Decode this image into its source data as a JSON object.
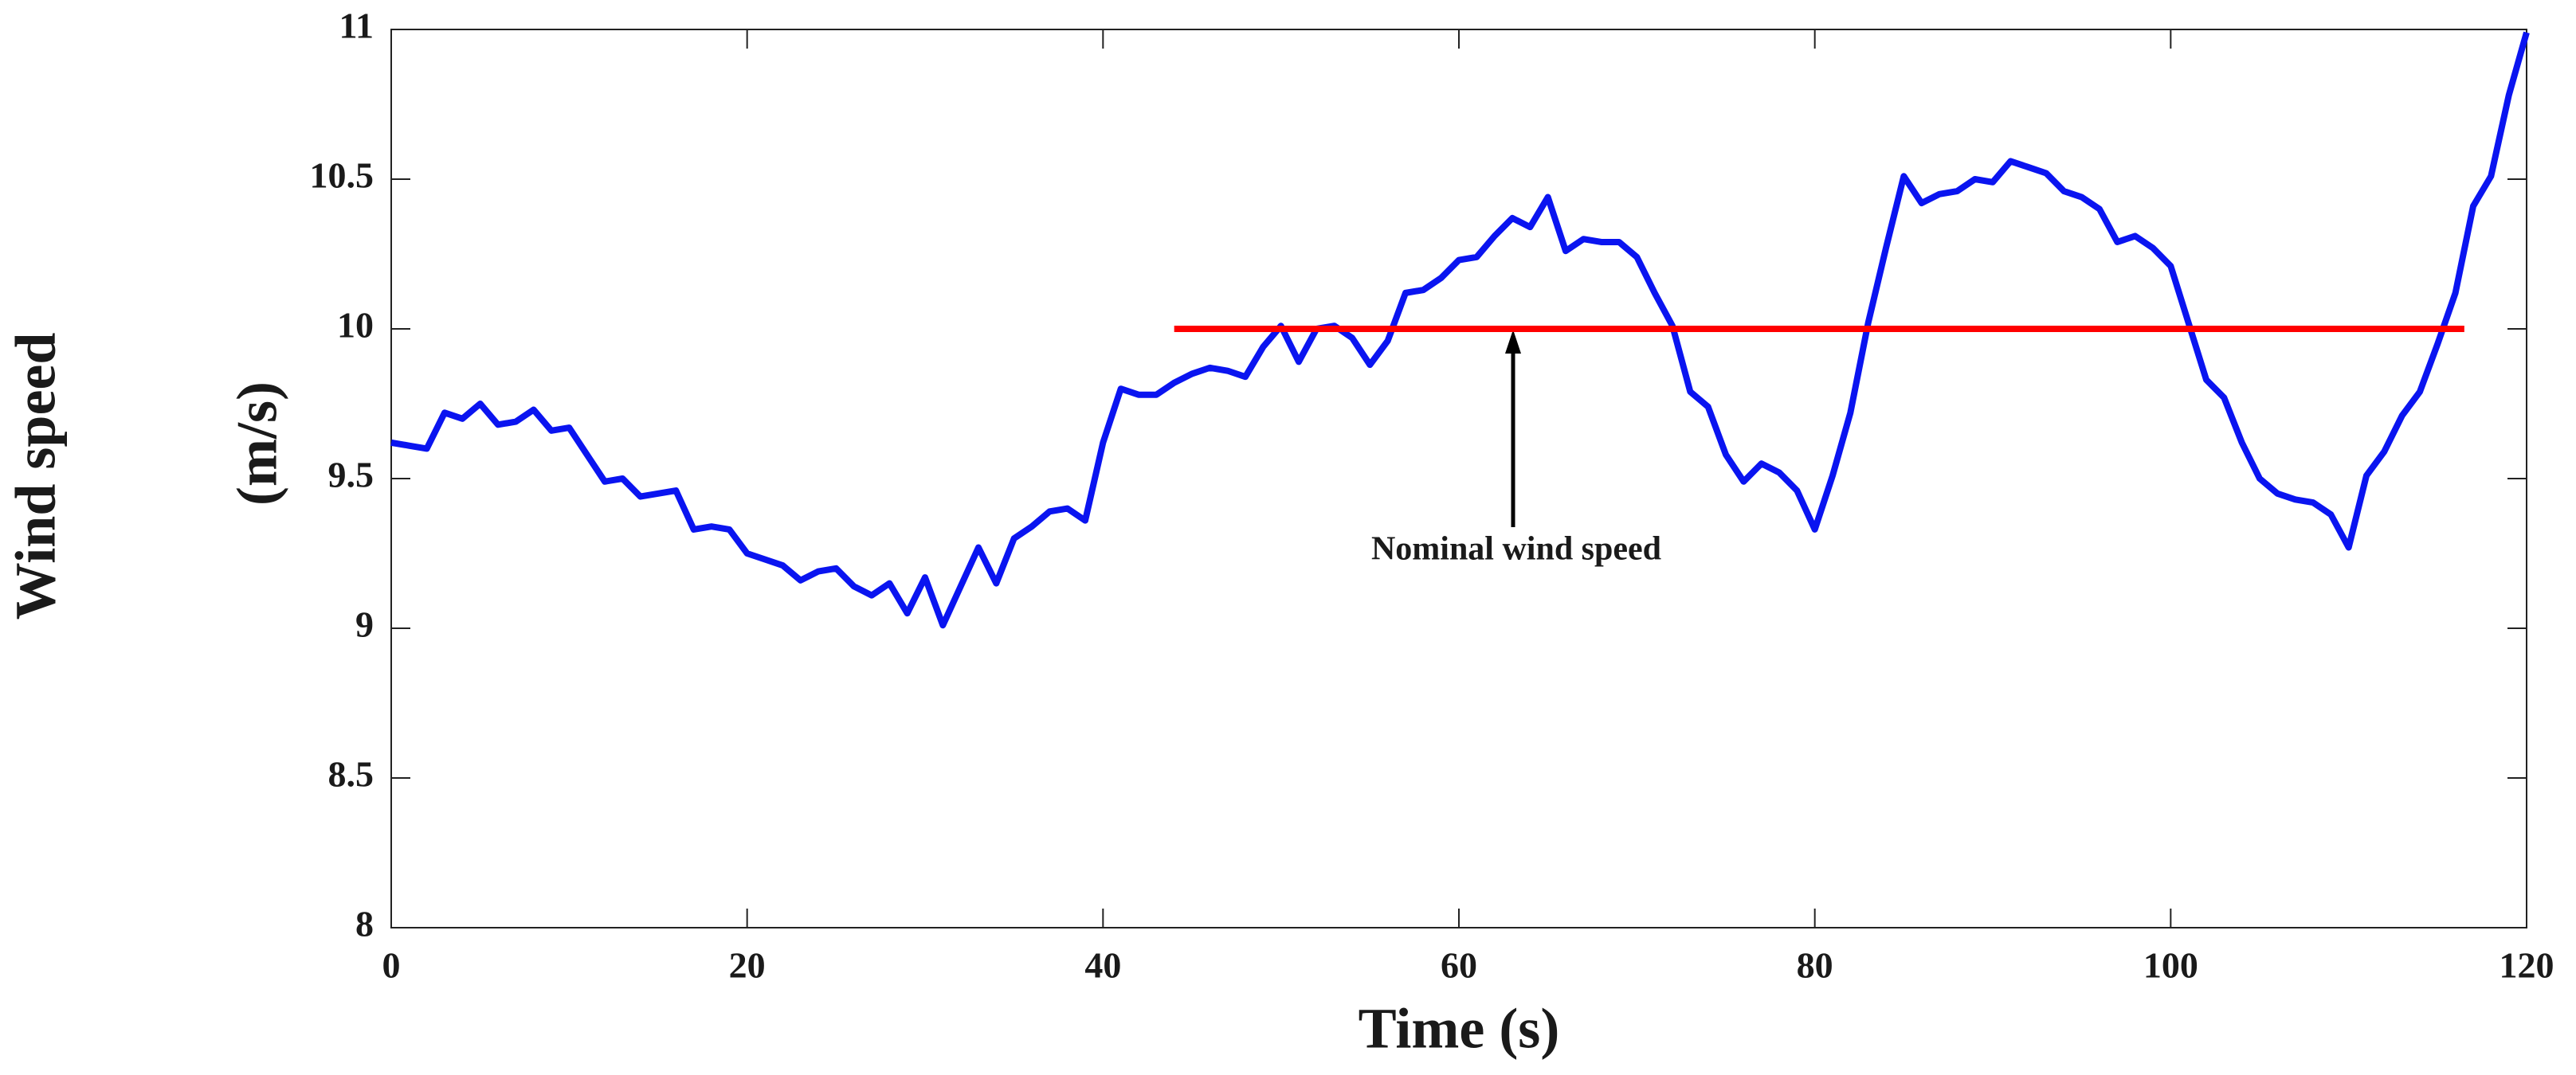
{
  "chart_data": {
    "type": "line",
    "xlabel": "Time (s)",
    "ylabel": "Wind speed",
    "ylabel_unit": "(m/s)",
    "annotation": "Nominal wind speed",
    "xlim": [
      0,
      120
    ],
    "xticks": [
      0,
      20,
      40,
      60,
      80,
      100,
      120
    ],
    "ylim": [
      8,
      11
    ],
    "yticks": [
      8,
      8.5,
      9,
      9.5,
      10,
      10.5,
      11
    ],
    "series": [
      {
        "color": "#0a14f0",
        "x": [
          0,
          1,
          2,
          3,
          4,
          5,
          6,
          7,
          8,
          9,
          10,
          11,
          12,
          13,
          14,
          15,
          16,
          17,
          18,
          19,
          20,
          21,
          22,
          23,
          24,
          25,
          26,
          27,
          28,
          29,
          30,
          31,
          32,
          33,
          34,
          35,
          36,
          37,
          38,
          39,
          40,
          41,
          42,
          43,
          44,
          45,
          46,
          47,
          48,
          49,
          50,
          51,
          52,
          53,
          54,
          55,
          56,
          57,
          58,
          59,
          60,
          61,
          62,
          63,
          64,
          65,
          66,
          67,
          68,
          69,
          70,
          71,
          72,
          73,
          74,
          75,
          76,
          77,
          78,
          79,
          80,
          81,
          82,
          83,
          84,
          85,
          86,
          87,
          88,
          89,
          90,
          91,
          92,
          93,
          94,
          95,
          96,
          97,
          98,
          99,
          100,
          101,
          102,
          103,
          104,
          105,
          106,
          107,
          108,
          109,
          110,
          111,
          112,
          113,
          114,
          115,
          116,
          117,
          118,
          119,
          120
        ],
        "values": [
          9.62,
          9.61,
          9.6,
          9.72,
          9.7,
          9.75,
          9.68,
          9.69,
          9.73,
          9.66,
          9.67,
          9.58,
          9.49,
          9.5,
          9.44,
          9.45,
          9.46,
          9.33,
          9.34,
          9.33,
          9.25,
          9.23,
          9.21,
          9.16,
          9.19,
          9.2,
          9.14,
          9.11,
          9.15,
          9.05,
          9.17,
          9.01,
          9.14,
          9.27,
          9.15,
          9.3,
          9.34,
          9.39,
          9.4,
          9.36,
          9.62,
          9.8,
          9.78,
          9.78,
          9.82,
          9.85,
          9.87,
          9.86,
          9.84,
          9.94,
          10.01,
          9.89,
          10.0,
          10.01,
          9.97,
          9.88,
          9.96,
          10.12,
          10.13,
          10.17,
          10.23,
          10.24,
          10.31,
          10.37,
          10.34,
          10.44,
          10.26,
          10.3,
          10.29,
          10.29,
          10.24,
          10.12,
          10.01,
          9.79,
          9.74,
          9.58,
          9.49,
          9.55,
          9.52,
          9.46,
          9.33,
          9.51,
          9.72,
          10.02,
          10.27,
          10.51,
          10.42,
          10.45,
          10.46,
          10.5,
          10.49,
          10.56,
          10.54,
          10.52,
          10.46,
          10.44,
          10.4,
          10.29,
          10.31,
          10.27,
          10.21,
          10.02,
          9.83,
          9.77,
          9.62,
          9.5,
          9.45,
          9.43,
          9.42,
          9.38,
          9.27,
          9.51,
          9.59,
          9.71,
          9.79,
          9.95,
          10.12,
          10.41,
          10.51,
          10.78,
          10.99
        ]
      },
      {
        "color": "#ff0000",
        "x": [
          44,
          116.5
        ],
        "values": [
          10,
          10
        ]
      }
    ]
  }
}
